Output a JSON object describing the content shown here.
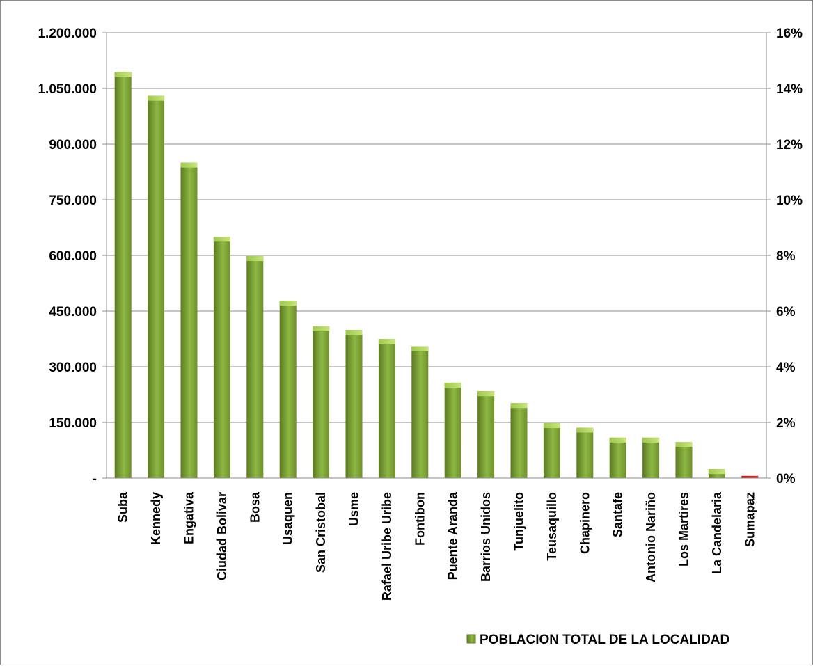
{
  "chart_data": {
    "type": "bar",
    "title": "",
    "categories": [
      "Suba",
      "Kennedy",
      "Engativa",
      "Ciudad Bolivar",
      "Bosa",
      "Usaquen",
      "San Cristobal",
      "Usme",
      "Rafael Uribe Uribe",
      "Fontibon",
      "Puente Aranda",
      "Barrios Unidos",
      "Tunjuelito",
      "Teusaquillo",
      "Chapinero",
      "Santafe",
      "Antonio Nariño",
      "Los Martires",
      "La Candelaria",
      "Sumapaz"
    ],
    "series": [
      {
        "name": "POBLACION TOTAL DE LA LOCALIDAD",
        "values": [
          1095000,
          1030000,
          850000,
          650000,
          598000,
          478000,
          409000,
          399000,
          375000,
          355000,
          257000,
          234000,
          202000,
          148000,
          136000,
          109000,
          109000,
          97000,
          24000,
          6000
        ]
      }
    ],
    "ylim": [
      0,
      1200000
    ],
    "yticks": [
      "-",
      "150.000",
      "300.000",
      "450.000",
      "600.000",
      "750.000",
      "900.000",
      "1.050.000",
      "1.200.000"
    ],
    "y2lim": [
      0,
      16
    ],
    "y2ticks": [
      "0%",
      "2%",
      "4%",
      "6%",
      "8%",
      "10%",
      "12%",
      "14%",
      "16%"
    ],
    "grid": true,
    "legend_position": "bottom-right",
    "colors": {
      "bar": "#7fa33a",
      "bar_light": "#b2d55c",
      "bar_dark": "#5c7a22",
      "highlight": "#d42020"
    }
  }
}
